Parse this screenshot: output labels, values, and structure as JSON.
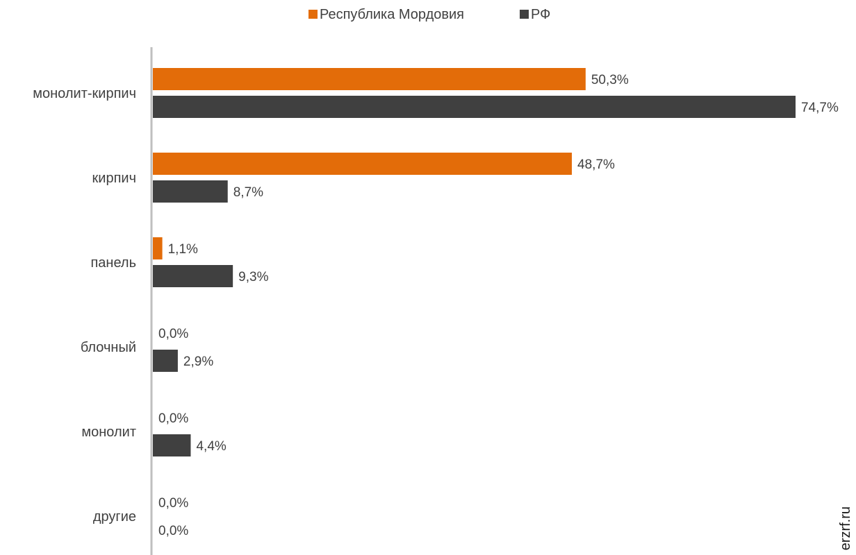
{
  "chart_data": {
    "type": "bar",
    "orientation": "horizontal",
    "categories": [
      "монолит-кирпич",
      "кирпич",
      "панель",
      "блочный",
      "монолит",
      "другие"
    ],
    "series": [
      {
        "name": "Республика Мордовия",
        "color": "#E36C09",
        "values": [
          50.3,
          48.7,
          1.1,
          0.0,
          0.0,
          0.0
        ],
        "labels": [
          "50,3%",
          "48,7%",
          "1,1%",
          "0,0%",
          "0,0%",
          "0,0%"
        ]
      },
      {
        "name": "РФ",
        "color": "#404040",
        "values": [
          74.7,
          8.7,
          9.3,
          2.9,
          4.4,
          0.0
        ],
        "labels": [
          "74,7%",
          "8,7%",
          "9,3%",
          "2,9%",
          "4,4%",
          "0,0%"
        ]
      }
    ],
    "xlim": [
      0,
      74.7
    ],
    "legend_position": "top-center",
    "grid": false,
    "axis_color": "#BFBFBF"
  },
  "watermark": "erzrf.ru"
}
